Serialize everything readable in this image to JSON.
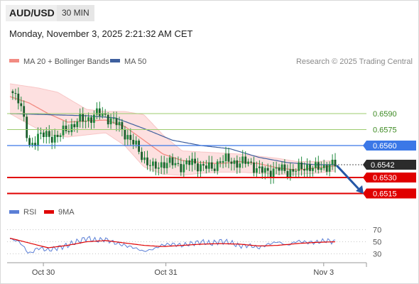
{
  "header": {
    "pair": "AUD/USD",
    "timeframe": "30 MIN",
    "datetime": "Monday, November 3, 2025 2:21:32 AM CET"
  },
  "legend": {
    "ma20_label": "MA 20 + Bollinger Bands",
    "ma50_label": "MA 50",
    "credit": "Research © 2025 Trading Central",
    "rsi_label": "RSI",
    "rsi_ma_label": "9MA"
  },
  "colors": {
    "ma20": "#f28b82",
    "bands_fill": "#fde0e0",
    "ma50": "#3e5f9e",
    "candle": "#1f8a3e",
    "resistance": "#9ccb6e",
    "pivot": "#3b78e7",
    "support": "#e00000",
    "arrow": "#2457a6",
    "rsi": "#5b7fd6",
    "rsi_ma": "#e00000"
  },
  "chart_data": {
    "type": "candlestick",
    "instrument": "AUD/USD",
    "timeframe": "30 MIN",
    "x_ticks": [
      "Oct 30",
      "Oct 31",
      "Nov 3"
    ],
    "y_range": [
      0.6508,
      0.6618
    ],
    "current_price": "0.6542",
    "levels": [
      {
        "value": "0.6590",
        "kind": "resistance"
      },
      {
        "value": "0.6575",
        "kind": "resistance"
      },
      {
        "value": "0.6560",
        "kind": "pivot"
      },
      {
        "value": "0.6530",
        "kind": "support"
      },
      {
        "value": "0.6515",
        "kind": "support"
      }
    ],
    "forecast": "bearish",
    "close_path": [
      [
        0,
        0.6611
      ],
      [
        1,
        0.6605
      ],
      [
        2,
        0.6557
      ],
      [
        3,
        0.6571
      ],
      [
        4,
        0.6568
      ],
      [
        5,
        0.6569
      ],
      [
        6,
        0.6575
      ],
      [
        7,
        0.6583
      ],
      [
        8,
        0.6584
      ],
      [
        9,
        0.659
      ],
      [
        10,
        0.6588
      ],
      [
        11,
        0.6582
      ],
      [
        12,
        0.6572
      ],
      [
        13,
        0.6561
      ],
      [
        14,
        0.6548
      ],
      [
        15,
        0.6538
      ],
      [
        16,
        0.6544
      ],
      [
        17,
        0.6543
      ],
      [
        18,
        0.6541
      ],
      [
        19,
        0.6544
      ],
      [
        20,
        0.6541
      ],
      [
        21,
        0.6538
      ],
      [
        22,
        0.6546
      ],
      [
        23,
        0.6546
      ],
      [
        24,
        0.6543
      ],
      [
        25,
        0.6545
      ],
      [
        26,
        0.6536
      ],
      [
        27,
        0.6536
      ],
      [
        28,
        0.6538
      ],
      [
        29,
        0.6536
      ],
      [
        30,
        0.6537
      ],
      [
        31,
        0.6541
      ],
      [
        32,
        0.6538
      ],
      [
        33,
        0.6541
      ],
      [
        34,
        0.6542
      ]
    ],
    "ma20": [
      [
        0,
        0.6606
      ],
      [
        2,
        0.66
      ],
      [
        4,
        0.659
      ],
      [
        6,
        0.6582
      ],
      [
        8,
        0.6583
      ],
      [
        10,
        0.6584
      ],
      [
        12,
        0.6578
      ],
      [
        14,
        0.6565
      ],
      [
        16,
        0.6552
      ],
      [
        18,
        0.6546
      ],
      [
        20,
        0.6544
      ],
      [
        22,
        0.6543
      ],
      [
        24,
        0.6545
      ],
      [
        26,
        0.6543
      ],
      [
        28,
        0.6539
      ],
      [
        30,
        0.6537
      ],
      [
        32,
        0.6539
      ],
      [
        34,
        0.6541
      ]
    ],
    "ma50": [
      [
        0,
        0.659
      ],
      [
        4,
        0.6589
      ],
      [
        8,
        0.6588
      ],
      [
        11,
        0.6586
      ],
      [
        14,
        0.6576
      ],
      [
        17,
        0.6565
      ],
      [
        20,
        0.656
      ],
      [
        23,
        0.6557
      ],
      [
        26,
        0.6549
      ],
      [
        29,
        0.6544
      ],
      [
        32,
        0.6542
      ],
      [
        34,
        0.6542
      ]
    ],
    "band_upper": [
      [
        0,
        0.6618
      ],
      [
        3,
        0.6614
      ],
      [
        5,
        0.661
      ],
      [
        8,
        0.6594
      ],
      [
        10,
        0.6592
      ],
      [
        12,
        0.6592
      ],
      [
        14,
        0.6589
      ],
      [
        16,
        0.657
      ],
      [
        18,
        0.6555
      ],
      [
        20,
        0.6554
      ],
      [
        22,
        0.6553
      ],
      [
        24,
        0.6552
      ],
      [
        26,
        0.655
      ],
      [
        28,
        0.6548
      ],
      [
        30,
        0.6545
      ],
      [
        32,
        0.6545
      ],
      [
        34,
        0.6546
      ]
    ],
    "band_lower": [
      [
        0,
        0.659
      ],
      [
        2,
        0.658
      ],
      [
        4,
        0.657
      ],
      [
        6,
        0.6568
      ],
      [
        8,
        0.657
      ],
      [
        10,
        0.6572
      ],
      [
        12,
        0.656
      ],
      [
        14,
        0.654
      ],
      [
        16,
        0.6533
      ],
      [
        18,
        0.6532
      ],
      [
        20,
        0.6534
      ],
      [
        22,
        0.6535
      ],
      [
        24,
        0.6535
      ],
      [
        26,
        0.6534
      ],
      [
        28,
        0.6533
      ],
      [
        30,
        0.6533
      ],
      [
        32,
        0.6534
      ],
      [
        34,
        0.6536
      ]
    ],
    "rsi": {
      "ticks": [
        "70",
        "50",
        "30"
      ],
      "y_range": [
        20,
        80
      ],
      "rsi_path": [
        [
          0,
          55
        ],
        [
          1,
          50
        ],
        [
          2,
          30
        ],
        [
          3,
          40
        ],
        [
          4,
          36
        ],
        [
          5,
          40
        ],
        [
          6,
          44
        ],
        [
          7,
          50
        ],
        [
          8,
          56
        ],
        [
          9,
          52
        ],
        [
          10,
          54
        ],
        [
          11,
          48
        ],
        [
          12,
          44
        ],
        [
          13,
          40
        ],
        [
          14,
          34
        ],
        [
          15,
          38
        ],
        [
          16,
          45
        ],
        [
          17,
          46
        ],
        [
          18,
          44
        ],
        [
          19,
          47
        ],
        [
          20,
          50
        ],
        [
          21,
          47
        ],
        [
          22,
          51
        ],
        [
          23,
          49
        ],
        [
          24,
          43
        ],
        [
          25,
          44
        ],
        [
          26,
          40
        ],
        [
          27,
          46
        ],
        [
          28,
          50
        ],
        [
          29,
          44
        ],
        [
          30,
          51
        ],
        [
          31,
          49
        ],
        [
          32,
          49
        ],
        [
          33,
          52
        ],
        [
          34,
          50
        ]
      ],
      "ma_path": [
        [
          0,
          56
        ],
        [
          2,
          48
        ],
        [
          4,
          40
        ],
        [
          6,
          44
        ],
        [
          8,
          50
        ],
        [
          10,
          52
        ],
        [
          12,
          48
        ],
        [
          14,
          44
        ],
        [
          16,
          42
        ],
        [
          18,
          44
        ],
        [
          20,
          46
        ],
        [
          22,
          47
        ],
        [
          24,
          46
        ],
        [
          26,
          43
        ],
        [
          28,
          44
        ],
        [
          30,
          47
        ],
        [
          32,
          49
        ],
        [
          34,
          50
        ]
      ]
    }
  }
}
